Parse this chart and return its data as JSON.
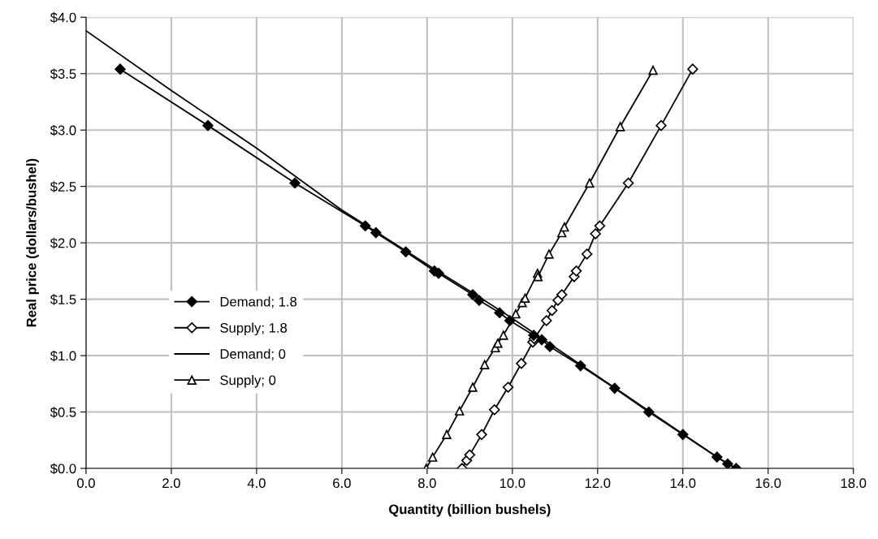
{
  "chart_data": {
    "type": "line",
    "xlabel": "Quantity (billion bushels)",
    "ylabel": "Real price (dollars/bushel)",
    "xlim": [
      0,
      18
    ],
    "ylim": [
      0,
      4
    ],
    "xticks": [
      {
        "value": 0,
        "label": "0.0"
      },
      {
        "value": 2,
        "label": "2.0"
      },
      {
        "value": 4,
        "label": "4.0"
      },
      {
        "value": 6,
        "label": "6.0"
      },
      {
        "value": 8,
        "label": "8.0"
      },
      {
        "value": 10,
        "label": "10.0"
      },
      {
        "value": 12,
        "label": "12.0"
      },
      {
        "value": 14,
        "label": "14.0"
      },
      {
        "value": 16,
        "label": "16.0"
      },
      {
        "value": 18,
        "label": "18.0"
      }
    ],
    "yticks": [
      {
        "value": 0,
        "label": "$0.0"
      },
      {
        "value": 0.5,
        "label": "$0.5"
      },
      {
        "value": 1,
        "label": "$1.0"
      },
      {
        "value": 1.5,
        "label": "$1.5"
      },
      {
        "value": 2,
        "label": "$2.0"
      },
      {
        "value": 2.5,
        "label": "$2.5"
      },
      {
        "value": 3,
        "label": "$3.0"
      },
      {
        "value": 3.5,
        "label": "$3.5"
      },
      {
        "value": 4,
        "label": "$4.0"
      }
    ],
    "grid": true,
    "legend": "left",
    "series": [
      {
        "name": "Demand; 1.8",
        "color": "#000000",
        "marker": "diamond",
        "x": [
          0.8,
          2.86,
          4.9,
          6.55,
          6.8,
          7.5,
          8.17,
          8.27,
          9.07,
          9.22,
          9.7,
          9.94,
          10.5,
          10.69,
          10.88,
          11.6,
          12.4,
          13.2,
          14.0,
          14.8,
          15.05,
          15.25
        ],
        "values": [
          3.54,
          3.04,
          2.53,
          2.15,
          2.09,
          1.92,
          1.75,
          1.73,
          1.54,
          1.49,
          1.38,
          1.31,
          1.18,
          1.14,
          1.08,
          0.91,
          0.71,
          0.5,
          0.3,
          0.1,
          0.04,
          0.0
        ]
      },
      {
        "name": "Supply; 1.8",
        "color": "#000000",
        "marker": "diamond_open",
        "x": [
          8.82,
          8.93,
          9.0,
          9.28,
          9.58,
          9.9,
          10.21,
          10.48,
          10.51,
          10.8,
          10.93,
          11.07,
          11.16,
          11.45,
          11.5,
          11.75,
          11.95,
          12.05,
          12.72,
          13.49,
          14.23
        ],
        "values": [
          0.0,
          0.07,
          0.12,
          0.3,
          0.52,
          0.72,
          0.93,
          1.12,
          1.15,
          1.31,
          1.4,
          1.49,
          1.54,
          1.7,
          1.75,
          1.9,
          2.08,
          2.15,
          2.53,
          3.04,
          3.54
        ]
      },
      {
        "name": "Demand; 0",
        "color": "#000000",
        "marker": "none",
        "x": [
          0,
          2,
          4,
          6,
          6.55,
          8.2,
          9.1,
          10.0,
          11.6,
          13.2,
          14.8,
          15.25
        ],
        "values": [
          3.88,
          3.35,
          2.84,
          2.29,
          2.16,
          1.76,
          1.55,
          1.33,
          0.92,
          0.51,
          0.1,
          0.0
        ]
      },
      {
        "name": "Supply; 0",
        "color": "#000000",
        "marker": "triangle",
        "x": [
          7.98,
          8.13,
          8.46,
          8.76,
          9.07,
          9.35,
          9.6,
          9.66,
          9.79,
          10.08,
          10.23,
          10.3,
          10.59,
          10.6,
          10.86,
          11.16,
          11.22,
          11.81,
          12.53,
          13.3
        ],
        "values": [
          0.0,
          0.1,
          0.3,
          0.51,
          0.72,
          0.92,
          1.07,
          1.11,
          1.18,
          1.37,
          1.47,
          1.51,
          1.73,
          1.7,
          1.9,
          2.09,
          2.14,
          2.53,
          3.03,
          3.53
        ]
      }
    ]
  }
}
